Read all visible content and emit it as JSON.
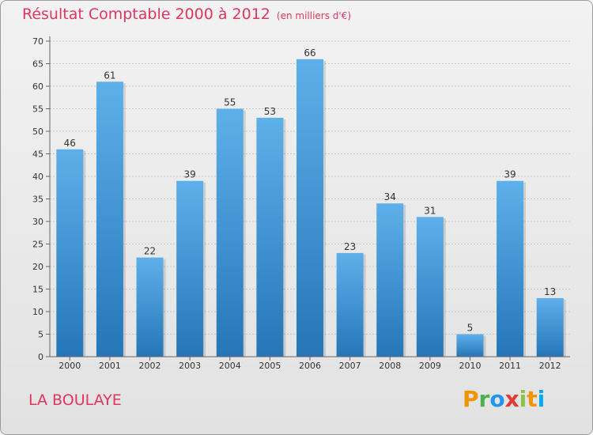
{
  "title": {
    "main": "Résultat Comptable 2000 à 2012",
    "unit": "(en milliers d'€)"
  },
  "location": "LA BOULAYE",
  "logo": {
    "letters": [
      "P",
      "r",
      "o",
      "x",
      "i",
      "t",
      "i"
    ],
    "colors": [
      "#f29400",
      "#4caf50",
      "#2196f3",
      "#e53935",
      "#8bc34a",
      "#f29400",
      "#03a9f4"
    ]
  },
  "colors": {
    "bar_top": "#5eb0ea",
    "bar_bottom": "#2576b8",
    "title": "#e2355f"
  },
  "chart_data": {
    "type": "bar",
    "title": "Résultat Comptable 2000 à 2012",
    "ylabel": "en milliers d'€",
    "categories": [
      "2000",
      "2001",
      "2002",
      "2003",
      "2004",
      "2005",
      "2006",
      "2007",
      "2008",
      "2009",
      "2010",
      "2011",
      "2012"
    ],
    "values": [
      46,
      61,
      22,
      39,
      55,
      53,
      66,
      23,
      34,
      31,
      5,
      39,
      13
    ],
    "ylim": [
      0,
      70
    ],
    "yticks": [
      0,
      5,
      10,
      15,
      20,
      25,
      30,
      35,
      40,
      45,
      50,
      55,
      60,
      65,
      70
    ],
    "grid": true
  }
}
